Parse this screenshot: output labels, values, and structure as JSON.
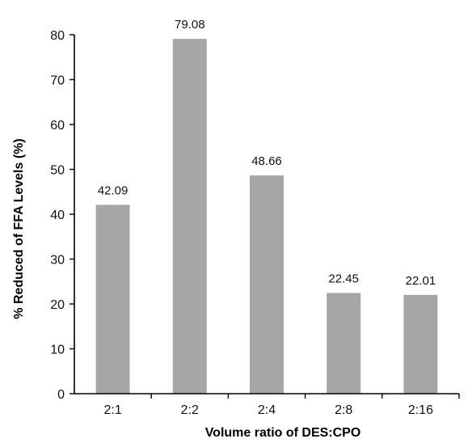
{
  "chart_data": {
    "type": "bar",
    "title": "",
    "xlabel": "Volume ratio of DES:CPO",
    "ylabel": "% Reduced of FFA Levels (%)",
    "categories": [
      "2:1",
      "2:2",
      "2:4",
      "2:8",
      "2:16"
    ],
    "values": [
      42.09,
      79.08,
      48.66,
      22.45,
      22.01
    ],
    "data_labels": [
      "42.09",
      "79.08",
      "48.66",
      "22.45",
      "22.01"
    ],
    "ylim": [
      0,
      80
    ],
    "yticks": [
      0,
      10,
      20,
      30,
      40,
      50,
      60,
      70,
      80
    ],
    "grid": false,
    "legend": "none",
    "bar_color": "#a6a6a6"
  }
}
